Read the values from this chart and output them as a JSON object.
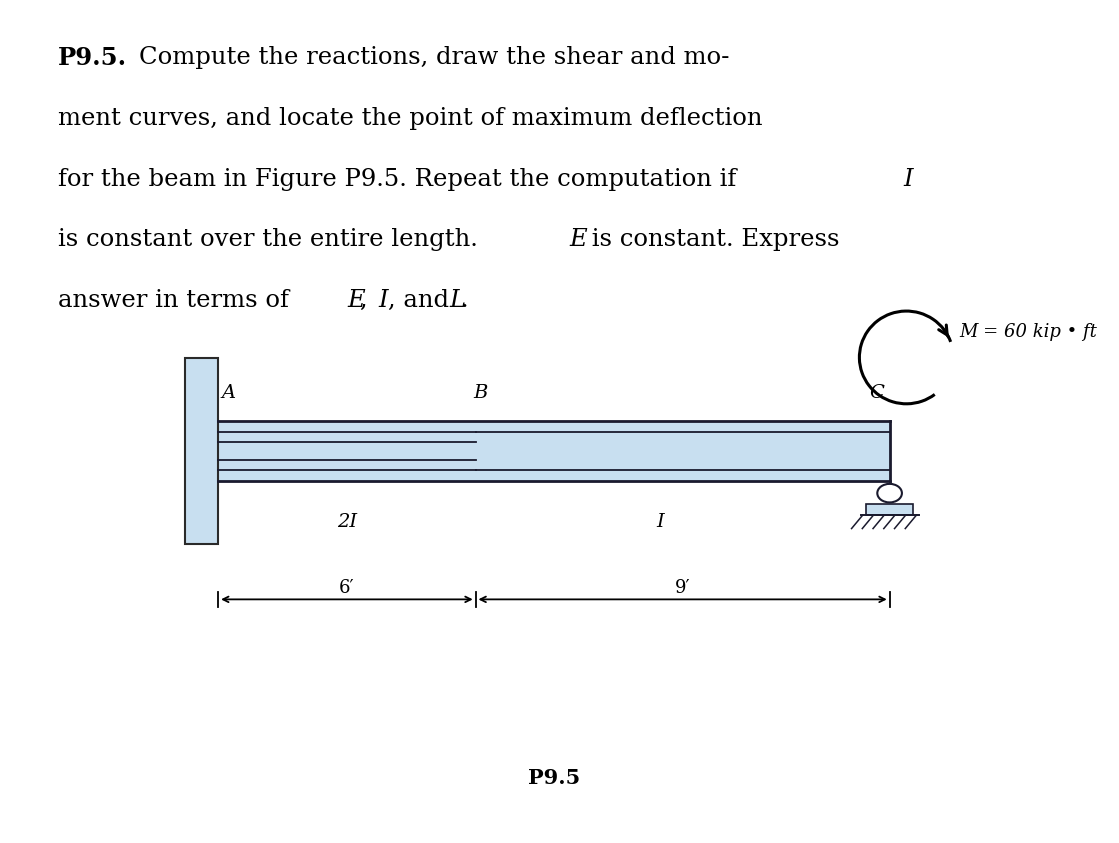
{
  "bg_color": "#ffffff",
  "beam_color": "#c8dff0",
  "beam_outline_color": "#1a1a2e",
  "wall_color": "#c8dff0",
  "label_A": "A",
  "label_B": "B",
  "label_C": "C",
  "label_2I": "2I",
  "label_I": "I",
  "label_6ft": "6′",
  "label_9ft": "9′",
  "figure_label": "P9.5",
  "moment_label": "M = 60 kip • ft",
  "bx0": 0.195,
  "bxB": 0.425,
  "bxC": 0.795,
  "byc": 0.465,
  "bh": 0.072
}
